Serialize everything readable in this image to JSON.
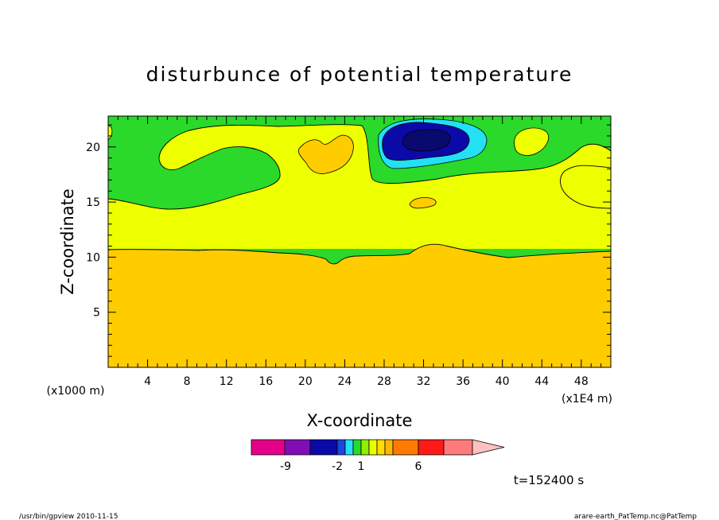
{
  "chart_data": {
    "type": "contour",
    "title": "disturbunce of potential temperature",
    "xlabel": "X-coordinate",
    "ylabel": "Z-coordinate",
    "x_unit_note": "(x1E4 m)",
    "y_unit_note": "(x1000 m)",
    "x_ticks": [
      "4",
      "8",
      "12",
      "16",
      "20",
      "24",
      "28",
      "32",
      "36",
      "40",
      "44",
      "48"
    ],
    "y_ticks": [
      "5",
      "10",
      "15",
      "20"
    ],
    "xlim": [
      0,
      51
    ],
    "ylim": [
      0,
      22.8
    ],
    "colorbar": {
      "labels": [
        "-9",
        "-2",
        "1",
        "6"
      ],
      "colors": [
        "#e5008a",
        "#7f0fb5",
        "#0b0aa8",
        "#1a48e0",
        "#24e0f5",
        "#2ad92a",
        "#8ff000",
        "#eeff00",
        "#ffdd00",
        "#ffb800",
        "#ff7a00",
        "#ff1a1a",
        "#ff7b7b",
        "#ffc0c0"
      ]
    },
    "regions": [
      {
        "name": "lower layer",
        "color": "#ffcc00",
        "z_top_approx": 10.7
      },
      {
        "name": "middle layer",
        "color": "#eeff00",
        "z_top_approx": 14.7
      },
      {
        "name": "upper layer",
        "color": "#2ad92a"
      },
      {
        "name": "minimum",
        "center_x": 32.4,
        "center_z": 20.6,
        "color": "#0b0aa8"
      }
    ],
    "time_label": "t=152400 s"
  },
  "footer": {
    "left": "/usr/bin/gpview   2010-11-15",
    "right": "arare-earth_PatTemp.nc@PatTemp"
  }
}
